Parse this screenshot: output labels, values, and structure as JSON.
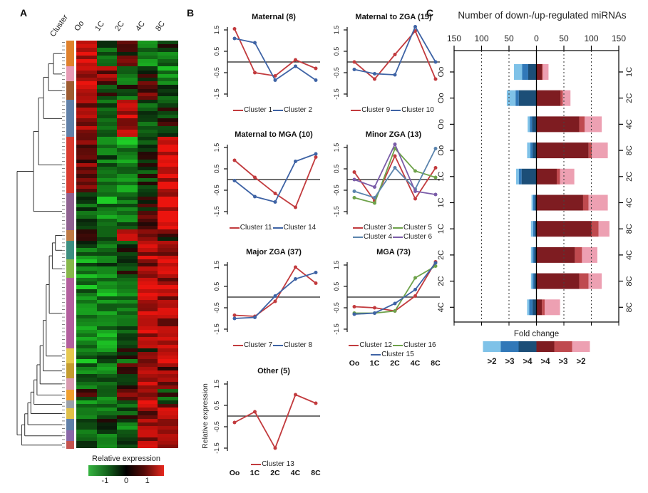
{
  "panels": {
    "a": "A",
    "b": "B",
    "c": "C"
  },
  "chart_data": [
    {
      "id": "heatmap",
      "type": "heatmap",
      "cluster_axis_label": "Cluster",
      "columns": [
        "Oo",
        "1C",
        "2C",
        "4C",
        "8C"
      ],
      "colorbar_title": "Relative expression",
      "colorbar_ticks": [
        "-1",
        "0",
        "1"
      ],
      "value_range": [
        -1.5,
        1.5
      ],
      "cluster_segments": [
        {
          "name": "cluster-orange",
          "color": "#e0812c",
          "rows": 7,
          "pattern": [
            1.2,
            -0.5,
            0.3,
            -0.7,
            -0.4
          ]
        },
        {
          "name": "cluster-pink",
          "color": "#e79ab5",
          "rows": 4,
          "pattern": [
            1.1,
            0.7,
            -0.7,
            -0.2,
            -0.8
          ]
        },
        {
          "name": "cluster-sienna",
          "color": "#9e5b30",
          "rows": 5,
          "pattern": [
            1.0,
            -0.2,
            -0.5,
            0.3,
            -0.5
          ]
        },
        {
          "name": "cluster-steel",
          "color": "#6080a8",
          "rows": 10,
          "pattern": [
            0.7,
            -0.4,
            1.1,
            -0.5,
            -0.2
          ]
        },
        {
          "name": "cluster-red",
          "color": "#d93a2e",
          "rows": 15,
          "pattern": [
            0.5,
            -0.6,
            -0.9,
            -0.3,
            1.2
          ]
        },
        {
          "name": "cluster-mauve",
          "color": "#8f6190",
          "rows": 10,
          "pattern": [
            -0.4,
            -0.8,
            -0.6,
            0.2,
            1.3
          ]
        },
        {
          "name": "cluster-brown",
          "color": "#bf7a45",
          "rows": 3,
          "pattern": [
            -0.2,
            -0.4,
            0.9,
            0.6,
            0.3
          ]
        },
        {
          "name": "cluster-teal",
          "color": "#3d8f80",
          "rows": 5,
          "pattern": [
            -0.5,
            -0.6,
            -0.4,
            1.0,
            0.8
          ]
        },
        {
          "name": "cluster-yellowgreen",
          "color": "#86b84a",
          "rows": 5,
          "pattern": [
            -0.7,
            -0.5,
            -0.2,
            0.7,
            1.0
          ]
        },
        {
          "name": "cluster-magenta",
          "color": "#b35f9e",
          "rows": 19,
          "pattern": [
            -0.8,
            -0.9,
            -0.5,
            1.1,
            0.9
          ]
        },
        {
          "name": "cluster-yellow",
          "color": "#e6c84f",
          "rows": 4,
          "pattern": [
            -0.9,
            -0.6,
            -0.3,
            0.4,
            1.0
          ]
        },
        {
          "name": "cluster-olive",
          "color": "#c49c2e",
          "rows": 4,
          "pattern": [
            -0.6,
            -0.8,
            0.2,
            0.8,
            0.5
          ]
        },
        {
          "name": "cluster-lightpink",
          "color": "#d99bb0",
          "rows": 3,
          "pattern": [
            -0.5,
            -0.7,
            -0.3,
            0.9,
            0.7
          ]
        },
        {
          "name": "cluster-orange2",
          "color": "#f0a030",
          "rows": 3,
          "pattern": [
            0.2,
            -0.6,
            0.8,
            0.5,
            -0.3
          ]
        },
        {
          "name": "cluster-gray",
          "color": "#9aa0a8",
          "rows": 2,
          "pattern": [
            -0.9,
            -0.3,
            -0.5,
            1.1,
            0.2
          ]
        },
        {
          "name": "cluster-yellow2",
          "color": "#e0c049",
          "rows": 3,
          "pattern": [
            -0.7,
            -0.8,
            -0.4,
            0.6,
            1.1
          ]
        },
        {
          "name": "cluster-blue2",
          "color": "#6080a8",
          "rows": 3,
          "pattern": [
            -0.4,
            -0.5,
            -0.6,
            1.0,
            0.9
          ]
        },
        {
          "name": "cluster-purple2",
          "color": "#8a68a8",
          "rows": 3,
          "pattern": [
            -0.6,
            -0.7,
            -0.2,
            0.8,
            1.0
          ]
        },
        {
          "name": "cluster-red2",
          "color": "#c4534f",
          "rows": 2,
          "pattern": [
            -0.3,
            -0.9,
            -0.5,
            1.2,
            0.6
          ]
        }
      ]
    },
    {
      "id": "maternal",
      "type": "line",
      "title": "Maternal (8)",
      "x": [
        "Oo",
        "1C",
        "2C",
        "4C",
        "8C"
      ],
      "ylim": [
        -1.75,
        1.75
      ],
      "yticks": [
        "1.5",
        "0.5",
        "-0.5",
        "-1.5"
      ],
      "show_x_labels": false,
      "y_axis_label": null,
      "series": [
        {
          "name": "Cluster 1",
          "color": "#c23b3e",
          "values": [
            1.55,
            -0.5,
            -0.65,
            0.1,
            -0.3
          ]
        },
        {
          "name": "Cluster 2",
          "color": "#3e63a5",
          "values": [
            1.1,
            0.9,
            -0.85,
            -0.2,
            -0.85
          ]
        }
      ],
      "legend_rows": [
        [
          "Cluster 1",
          "Cluster 2"
        ]
      ]
    },
    {
      "id": "maternal-to-zga",
      "type": "line",
      "title": "Maternal to ZGA (15)",
      "x": [
        "Oo",
        "1C",
        "2C",
        "4C",
        "8C"
      ],
      "ylim": [
        -1.75,
        1.75
      ],
      "yticks": [
        "1.5",
        "0.5",
        "-0.5",
        "-1.5"
      ],
      "show_x_labels": false,
      "y_axis_label": null,
      "series": [
        {
          "name": "Cluster 9",
          "color": "#c23b3e",
          "values": [
            0.0,
            -0.8,
            0.35,
            1.45,
            -0.8
          ]
        },
        {
          "name": "Cluster 10",
          "color": "#3e63a5",
          "values": [
            -0.35,
            -0.55,
            -0.6,
            1.65,
            0.0
          ]
        }
      ],
      "legend_rows": [
        [
          "Cluster 9",
          "Cluster 10"
        ]
      ]
    },
    {
      "id": "maternal-to-mga",
      "type": "line",
      "title": "Maternal to MGA (10)",
      "x": [
        "Oo",
        "1C",
        "2C",
        "4C",
        "8C"
      ],
      "ylim": [
        -1.75,
        1.75
      ],
      "yticks": [
        "1.5",
        "0.5",
        "-0.5",
        "-1.5"
      ],
      "show_x_labels": false,
      "y_axis_label": null,
      "series": [
        {
          "name": "Cluster 11",
          "color": "#c23b3e",
          "values": [
            0.9,
            0.1,
            -0.65,
            -1.3,
            1.05
          ]
        },
        {
          "name": "Cluster 14",
          "color": "#3e63a5",
          "values": [
            -0.05,
            -0.8,
            -1.05,
            0.85,
            1.2
          ]
        }
      ],
      "legend_rows": [
        [
          "Cluster 11",
          "Cluster 14"
        ]
      ]
    },
    {
      "id": "minor-zga",
      "type": "line",
      "title": "Minor ZGA (13)",
      "x": [
        "Oo",
        "1C",
        "2C",
        "4C",
        "8C"
      ],
      "ylim": [
        -1.75,
        1.75
      ],
      "yticks": [
        "1.5",
        "0.5",
        "-0.5",
        "-1.5"
      ],
      "show_x_labels": false,
      "y_axis_label": null,
      "series": [
        {
          "name": "Cluster 3",
          "color": "#c23b3e",
          "values": [
            0.35,
            -1.0,
            1.1,
            -0.9,
            0.55
          ]
        },
        {
          "name": "Cluster 5",
          "color": "#6ea24a",
          "values": [
            -0.85,
            -1.1,
            1.45,
            0.4,
            0.1
          ]
        },
        {
          "name": "Cluster 4",
          "color": "#5b84ad",
          "values": [
            -0.55,
            -0.85,
            0.55,
            -0.45,
            1.45
          ]
        },
        {
          "name": "Cluster 6",
          "color": "#7a5ca8",
          "values": [
            0.0,
            -0.35,
            1.65,
            -0.55,
            -0.7
          ]
        }
      ],
      "legend_rows": [
        [
          "Cluster 3",
          "Cluster 5"
        ],
        [
          "Cluster 4",
          "Cluster 6"
        ]
      ]
    },
    {
      "id": "major-zga",
      "type": "line",
      "title": "Major ZGA (37)",
      "x": [
        "Oo",
        "1C",
        "2C",
        "4C",
        "8C"
      ],
      "ylim": [
        -1.75,
        1.75
      ],
      "yticks": [
        "1.5",
        "0.5",
        "-0.5",
        "-1.5"
      ],
      "show_x_labels": false,
      "y_axis_label": null,
      "series": [
        {
          "name": "Cluster 7",
          "color": "#c23b3e",
          "values": [
            -0.85,
            -0.9,
            -0.2,
            1.4,
            0.65
          ]
        },
        {
          "name": "Cluster 8",
          "color": "#3e63a5",
          "values": [
            -1.0,
            -0.95,
            0.05,
            0.85,
            1.15
          ]
        }
      ],
      "legend_rows": [
        [
          "Cluster 7",
          "Cluster 8"
        ]
      ]
    },
    {
      "id": "mga",
      "type": "line",
      "title": "MGA (73)",
      "x": [
        "Oo",
        "1C",
        "2C",
        "4C",
        "8C"
      ],
      "ylim": [
        -1.75,
        1.75
      ],
      "yticks": [
        "1.5",
        "0.5",
        "-0.5",
        "-1.5"
      ],
      "show_x_labels": true,
      "y_axis_label": null,
      "series": [
        {
          "name": "Cluster 12",
          "color": "#c23b3e",
          "values": [
            -0.45,
            -0.5,
            -0.65,
            0.05,
            1.65
          ]
        },
        {
          "name": "Cluster 16",
          "color": "#6ea24a",
          "values": [
            -0.75,
            -0.75,
            -0.65,
            0.9,
            1.45
          ]
        },
        {
          "name": "Cluster 15",
          "color": "#3e63a5",
          "values": [
            -0.8,
            -0.75,
            -0.3,
            0.35,
            1.6
          ]
        }
      ],
      "legend_rows": [
        [
          "Cluster 12",
          "Cluster 16"
        ],
        [
          "Cluster 15"
        ]
      ]
    },
    {
      "id": "other",
      "type": "line",
      "title": "Other (5)",
      "x": [
        "Oo",
        "1C",
        "2C",
        "4C",
        "8C"
      ],
      "ylim": [
        -1.75,
        1.75
      ],
      "yticks": [
        "1.5",
        "0.5",
        "-0.5",
        "-1.5"
      ],
      "show_x_labels": true,
      "y_axis_label": "Relative expression",
      "series": [
        {
          "name": "Cluster 13",
          "color": "#c23b3e",
          "values": [
            -0.3,
            0.2,
            -1.5,
            1.0,
            0.6
          ]
        }
      ],
      "legend_rows": [
        [
          "Cluster 13"
        ]
      ]
    },
    {
      "id": "mirna-counts",
      "type": "bar",
      "title": "Number of down-/up-regulated miRNAs",
      "axis_ticks": [
        "150",
        "100",
        "50",
        "0",
        "50",
        "100",
        "150"
      ],
      "axis_max": 150,
      "down_colors": [
        "#7fc2e8",
        "#3178b8",
        "#1c4e77"
      ],
      "up_colors": [
        "#7e1c21",
        "#bf4a4f",
        "#eda0b2"
      ],
      "legend_title": "Fold change",
      "legend_entries": [
        {
          "label": ">2",
          "color": "#7fc2e8"
        },
        {
          "label": ">3",
          "color": "#3178b8"
        },
        {
          "label": ">4",
          "color": "#1c4e77"
        },
        {
          "label": ">4",
          "color": "#7e1c21"
        },
        {
          "label": ">3",
          "color": "#bf4a4f"
        },
        {
          "label": ">2",
          "color": "#eda0b2"
        }
      ],
      "rows": [
        {
          "left": "Oo",
          "right": "1C",
          "down": [
            15,
            11,
            15
          ],
          "up": [
            10,
            2,
            10
          ]
        },
        {
          "left": "Oo",
          "right": "2C",
          "down": [
            16,
            6,
            32
          ],
          "up": [
            44,
            4,
            14
          ]
        },
        {
          "left": "Oo",
          "right": "4C",
          "down": [
            4,
            4,
            8
          ],
          "up": [
            78,
            10,
            31
          ]
        },
        {
          "left": "Oo",
          "right": "8C",
          "down": [
            6,
            4,
            7
          ],
          "up": [
            95,
            6,
            29
          ]
        },
        {
          "left": "1C",
          "right": "2C",
          "down": [
            5,
            5,
            27
          ],
          "up": [
            37,
            6,
            26
          ]
        },
        {
          "left": "1C",
          "right": "4C",
          "down": [
            3,
            3,
            3
          ],
          "up": [
            85,
            10,
            35
          ]
        },
        {
          "left": "1C",
          "right": "8C",
          "down": [
            4,
            3,
            3
          ],
          "up": [
            100,
            13,
            20
          ]
        },
        {
          "left": "2C",
          "right": "4C",
          "down": [
            3,
            3,
            4
          ],
          "up": [
            70,
            13,
            28
          ]
        },
        {
          "left": "2C",
          "right": "8C",
          "down": [
            3,
            3,
            4
          ],
          "up": [
            78,
            17,
            24
          ]
        },
        {
          "left": "4C",
          "right": "8C",
          "down": [
            4,
            6,
            7
          ],
          "up": [
            10,
            5,
            28
          ]
        }
      ]
    }
  ]
}
